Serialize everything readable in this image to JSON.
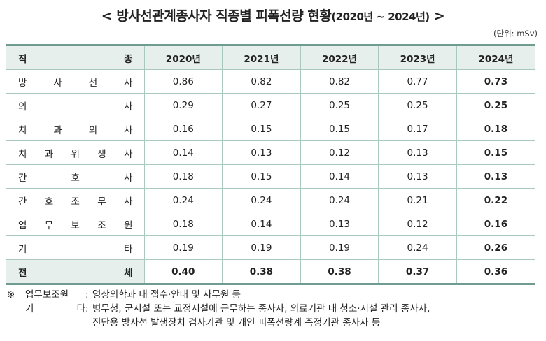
{
  "title": {
    "main": "< 방사선관계종사자 직종별 피폭선량 현황",
    "years": "(2020년 ~ 2024년)",
    "end": " >"
  },
  "unit": "(단위: mSv)",
  "table": {
    "header": {
      "job": "직 종",
      "years": [
        "2020년",
        "2021년",
        "2022년",
        "2023년",
        "2024년"
      ]
    },
    "rows": [
      {
        "job": "방 사 선 사",
        "values": [
          "0.86",
          "0.82",
          "0.82",
          "0.77",
          "0.73"
        ]
      },
      {
        "job": "의 사",
        "values": [
          "0.29",
          "0.27",
          "0.25",
          "0.25",
          "0.25"
        ]
      },
      {
        "job": "치 과 의 사",
        "values": [
          "0.16",
          "0.15",
          "0.15",
          "0.17",
          "0.18"
        ]
      },
      {
        "job": "치 과 위 생 사",
        "values": [
          "0.14",
          "0.13",
          "0.12",
          "0.13",
          "0.15"
        ]
      },
      {
        "job": "간 호 사",
        "values": [
          "0.18",
          "0.15",
          "0.14",
          "0.13",
          "0.13"
        ]
      },
      {
        "job": "간 호 조 무 사",
        "values": [
          "0.24",
          "0.24",
          "0.24",
          "0.21",
          "0.22"
        ]
      },
      {
        "job": "업 무 보 조 원",
        "values": [
          "0.18",
          "0.14",
          "0.13",
          "0.12",
          "0.16"
        ]
      },
      {
        "job": "기 타",
        "values": [
          "0.19",
          "0.19",
          "0.19",
          "0.24",
          "0.26"
        ]
      }
    ],
    "total": {
      "job": "전 체",
      "values": [
        "0.40",
        "0.38",
        "0.38",
        "0.37",
        "0.36"
      ]
    }
  },
  "notes": {
    "mark": "※",
    "items": [
      {
        "label": "업무보조원",
        "text": "영상의학과 내 접수·안내 및 사무원 등"
      },
      {
        "label": "기 타",
        "text": "병무청, 군시설 또는 교정시설에 근무하는 종사자, 의료기관 내 청소·시설 관리 종사자,",
        "cont": "진단용 방사선 발생장치 검사기관 및 개인 피폭선량계 측정기관 종사자 등"
      }
    ]
  },
  "colors": {
    "header_bg": "#e6efec",
    "border_accent": "#6f9b91",
    "grid": "#a9c8c0"
  }
}
